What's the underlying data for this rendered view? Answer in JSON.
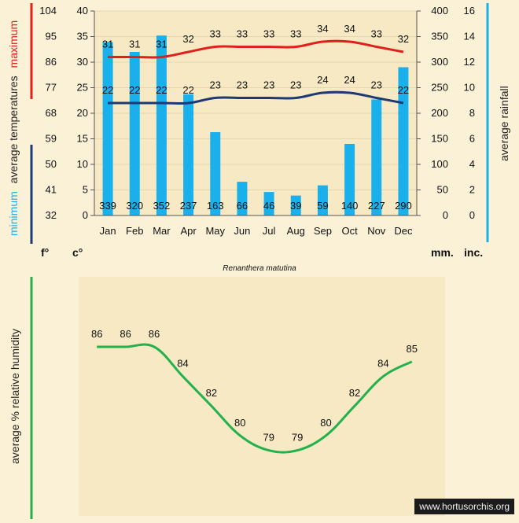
{
  "chart_data": [
    {
      "type": "bar+line",
      "categories": [
        "Jan",
        "Feb",
        "Mar",
        "Apr",
        "May",
        "Jun",
        "Jul",
        "Aug",
        "Sep",
        "Oct",
        "Nov",
        "Dec"
      ],
      "rainfall": {
        "values": [
          339,
          320,
          352,
          237,
          163,
          66,
          46,
          39,
          59,
          140,
          227,
          290
        ],
        "color": "#1ab0ec",
        "axis_mm_ticks": [
          "0",
          "50",
          "100",
          "150",
          "200",
          "250",
          "300",
          "350",
          "400"
        ],
        "axis_in_ticks": [
          "0",
          "2",
          "4",
          "6",
          "8",
          "10",
          "12",
          "14",
          "16"
        ],
        "ylim": [
          0,
          400
        ]
      },
      "temperature_max": {
        "values": [
          31,
          31,
          31,
          32,
          33,
          33,
          33,
          33,
          34,
          34,
          33,
          32
        ],
        "color": "#e0201b"
      },
      "temperature_min": {
        "values": [
          22,
          22,
          22,
          22,
          23,
          23,
          23,
          23,
          24,
          24,
          23,
          22
        ],
        "color": "#1f3a73"
      },
      "temp_axis_c_ticks": [
        "0",
        "5",
        "10",
        "15",
        "20",
        "25",
        "30",
        "35",
        "40"
      ],
      "temp_axis_f_ticks": [
        "32",
        "41",
        "50",
        "59",
        "68",
        "77",
        "86",
        "95",
        "104"
      ],
      "temp_ylim_c": [
        0,
        40
      ],
      "unit_f": "f°",
      "unit_c": "c°",
      "unit_mm": "mm.",
      "unit_in": "inc.",
      "ylabel_left_min": "minimum",
      "ylabel_left_mid": "average temperatures",
      "ylabel_left_max": "maximum",
      "ylabel_right": "average rainfall",
      "title": "Renanthera matutina"
    },
    {
      "type": "line",
      "categories": [
        "Jan",
        "Feb",
        "Mar",
        "Apr",
        "May",
        "Jun",
        "Jul",
        "Aug",
        "Sep",
        "Oct",
        "Nov",
        "Dec"
      ],
      "values": [
        86,
        86,
        86,
        84,
        82,
        80,
        79,
        79,
        80,
        82,
        84,
        85
      ],
      "color": "#22b14c",
      "ylabel": "average %  relative humidity"
    }
  ],
  "watermark": "www.hortusorchis.org",
  "colors": {
    "background": "#fbf1d6",
    "panel": "#f7e9c4"
  }
}
